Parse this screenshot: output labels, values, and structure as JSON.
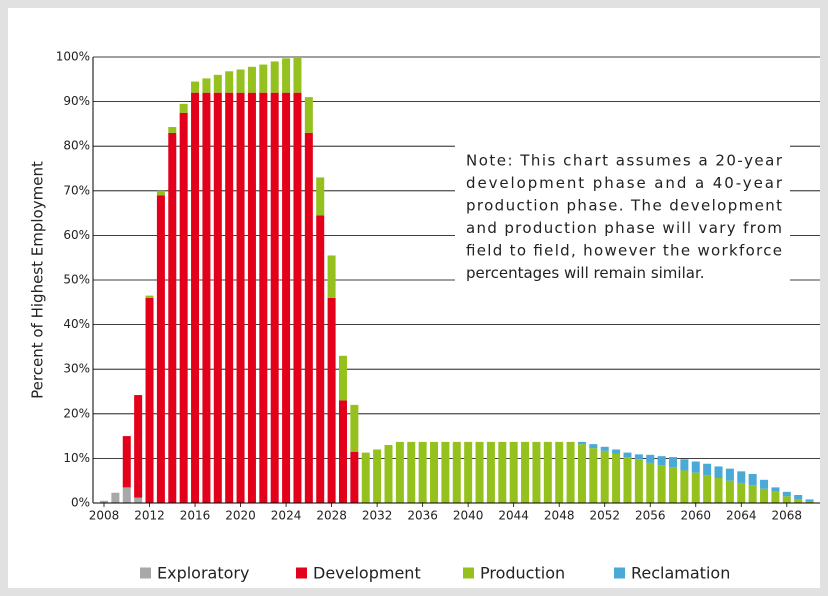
{
  "chart_data": {
    "type": "stacked_bar",
    "y_label": "Percent of Highest Employment",
    "note": [
      "Note: This chart assumes a 20-year",
      "development phase and a 40-year",
      "production phase. The  development",
      "and production phase will vary from",
      "field to field,  however the workforce",
      "percentages will remain similar."
    ],
    "categories": [
      "2008",
      null,
      null,
      null,
      "2012",
      null,
      null,
      null,
      "2016",
      null,
      null,
      null,
      "2020",
      null,
      null,
      null,
      "2024",
      null,
      null,
      null,
      "2028",
      null,
      null,
      null,
      "2032",
      null,
      null,
      null,
      "2036",
      null,
      null,
      null,
      "2040",
      null,
      null,
      null,
      "2044",
      null,
      null,
      null,
      "2048",
      null,
      null,
      null,
      "2052",
      null,
      null,
      null,
      "2056",
      null,
      null,
      null,
      "2060",
      null,
      null,
      null,
      "2064",
      null,
      null,
      null,
      "2068",
      null,
      null
    ],
    "series": [
      {
        "name": "Exploratory",
        "color": "#a8a8a8",
        "values": [
          0.5,
          2.3,
          3.5,
          1.2,
          0,
          0,
          0,
          0,
          0,
          0,
          0,
          0,
          0,
          0,
          0,
          0,
          0,
          0,
          0,
          0,
          0,
          0,
          0,
          0,
          0,
          0,
          0,
          0,
          0,
          0,
          0,
          0,
          0,
          0,
          0,
          0,
          0,
          0,
          0,
          0,
          0,
          0,
          0,
          0,
          0,
          0,
          0,
          0,
          0,
          0,
          0,
          0,
          0,
          0,
          0,
          0,
          0,
          0,
          0,
          0,
          0,
          0,
          0
        ]
      },
      {
        "name": "Development",
        "color": "#e2001a",
        "values": [
          0,
          0,
          11.5,
          23,
          46,
          69,
          83,
          87.5,
          92,
          92,
          92,
          92,
          92,
          92,
          92,
          92,
          92,
          92,
          83,
          64.5,
          46,
          23,
          11.5,
          0,
          0,
          0,
          0,
          0,
          0,
          0,
          0,
          0,
          0,
          0,
          0,
          0,
          0,
          0,
          0,
          0,
          0,
          0,
          0,
          0,
          0,
          0,
          0,
          0,
          0,
          0,
          0,
          0,
          0,
          0,
          0,
          0,
          0,
          0,
          0,
          0,
          0,
          0,
          0
        ]
      },
      {
        "name": "Production",
        "color": "#95c11f",
        "values": [
          0,
          0,
          0,
          0,
          0.5,
          1,
          1.3,
          2,
          2.5,
          3.2,
          4,
          4.8,
          5.2,
          5.8,
          6.3,
          7,
          7.7,
          8,
          8,
          8.5,
          9.5,
          10,
          10.5,
          11.3,
          12,
          13,
          13.7,
          13.7,
          13.7,
          13.7,
          13.7,
          13.7,
          13.7,
          13.7,
          13.7,
          13.7,
          13.7,
          13.7,
          13.7,
          13.7,
          13.7,
          13.7,
          13.2,
          12.3,
          11.7,
          11.0,
          10.3,
          9.8,
          9.0,
          8.5,
          8.0,
          7.3,
          6.8,
          6.2,
          5.6,
          5.0,
          4.5,
          4.0,
          3.2,
          2.6,
          1.5,
          0.8,
          0.3
        ]
      },
      {
        "name": "Reclamation",
        "color": "#4aa9d6",
        "values": [
          0,
          0,
          0,
          0,
          0,
          0,
          0,
          0,
          0,
          0,
          0,
          0,
          0,
          0,
          0,
          0,
          0,
          0,
          0,
          0,
          0,
          0,
          0,
          0,
          0,
          0,
          0,
          0,
          0,
          0,
          0,
          0,
          0,
          0,
          0,
          0,
          0,
          0,
          0,
          0,
          0,
          0,
          0.5,
          0.9,
          0.9,
          1.0,
          1.0,
          1.1,
          1.8,
          2.0,
          2.3,
          2.5,
          2.5,
          2.6,
          2.6,
          2.7,
          2.6,
          2.5,
          2.0,
          0.9,
          1.0,
          1.0,
          0.5
        ]
      }
    ],
    "ylim": [
      0,
      100
    ],
    "yticks": [
      {
        "value": 0,
        "label": "0%"
      },
      {
        "value": 10,
        "label": "10%"
      },
      {
        "value": 20,
        "label": "20%"
      },
      {
        "value": 30,
        "label": "30%"
      },
      {
        "value": 40,
        "label": "40%"
      },
      {
        "value": 50,
        "label": "50%"
      },
      {
        "value": 60,
        "label": "60%"
      },
      {
        "value": 70,
        "label": "70%"
      },
      {
        "value": 80,
        "label": "80%"
      },
      {
        "value": 90,
        "label": "90%"
      },
      {
        "value": 100,
        "label": "100%"
      }
    ],
    "grid": true,
    "legend": "bottom"
  }
}
